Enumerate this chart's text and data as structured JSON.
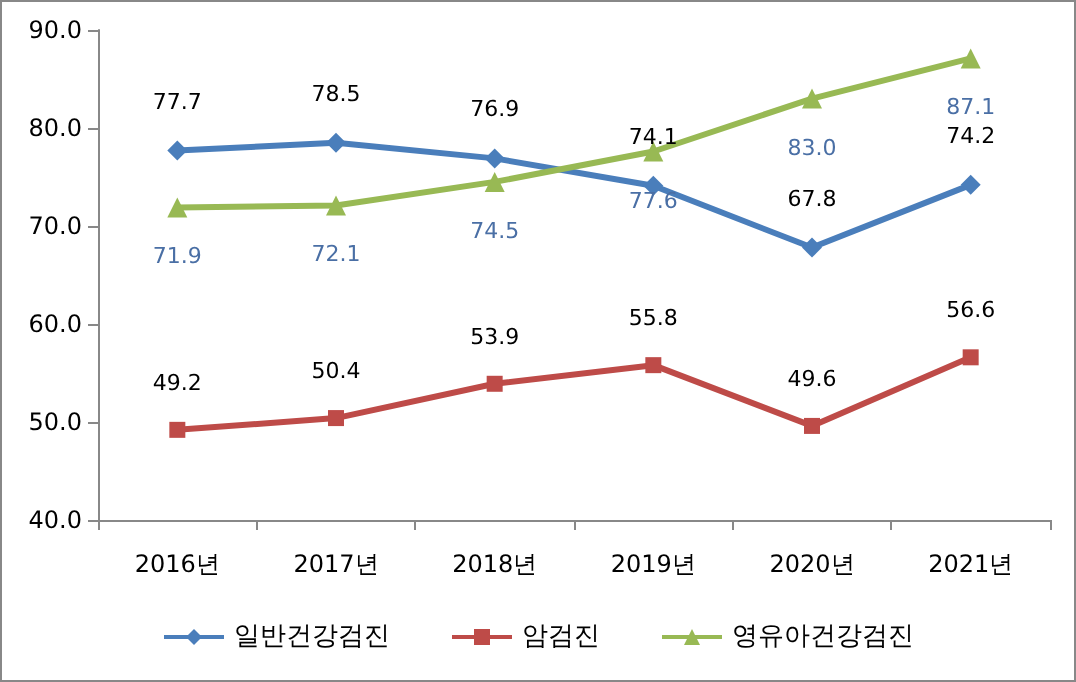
{
  "chart_data": {
    "type": "line",
    "categories": [
      "2016년",
      "2017년",
      "2018년",
      "2019년",
      "2020년",
      "2021년"
    ],
    "series": [
      {
        "name": "일반건강검진",
        "color": "#4a7ebb",
        "marker": "diamond",
        "values": [
          77.7,
          78.5,
          76.9,
          74.1,
          67.8,
          74.2
        ],
        "value_labels": [
          "77.7",
          "78.5",
          "76.9",
          "74.1",
          "67.8",
          "74.2"
        ]
      },
      {
        "name": "암검진",
        "color": "#be4b48",
        "marker": "square",
        "values": [
          49.2,
          50.4,
          53.9,
          55.8,
          49.6,
          56.6
        ],
        "value_labels": [
          "49.2",
          "50.4",
          "53.9",
          "55.8",
          "49.6",
          "56.6"
        ]
      },
      {
        "name": "영유아건강검진",
        "color": "#98b954",
        "marker": "triangle",
        "values": [
          71.9,
          72.1,
          74.5,
          77.6,
          83.0,
          87.1
        ],
        "value_labels": [
          "71.9",
          "72.1",
          "74.5",
          "77.6",
          "83.0",
          "87.1"
        ]
      }
    ],
    "ylim": [
      40,
      90
    ],
    "yticks": [
      {
        "value": 40,
        "label": "40.0"
      },
      {
        "value": 50,
        "label": "50.0"
      },
      {
        "value": 60,
        "label": "60.0"
      },
      {
        "value": 70,
        "label": "70.0"
      },
      {
        "value": 80,
        "label": "80.0"
      },
      {
        "value": 90,
        "label": "90.0"
      }
    ],
    "grid": false,
    "legend": "bottom"
  }
}
